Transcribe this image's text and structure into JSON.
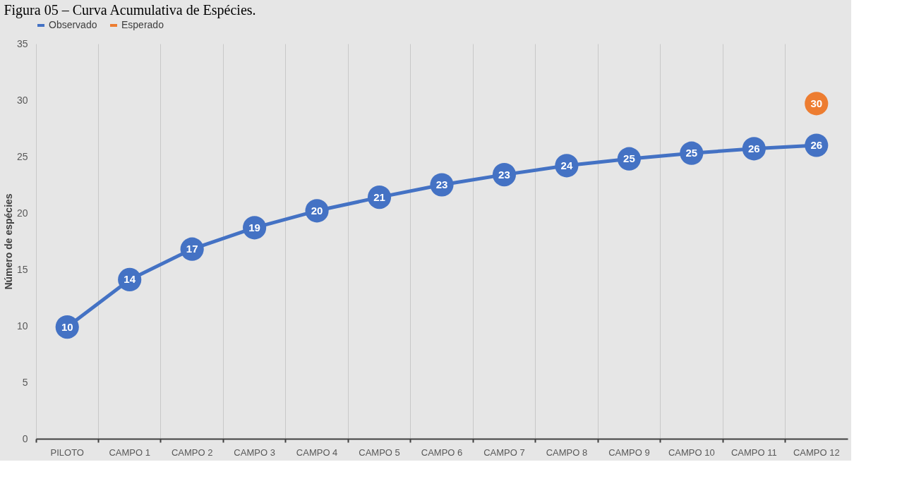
{
  "chart_data": {
    "type": "line",
    "title": "Figura 05 – Curva Acumulativa de Espécies.",
    "ylabel": "Número de espécies",
    "categories": [
      "PILOTO",
      "CAMPO 1",
      "CAMPO 2",
      "CAMPO 3",
      "CAMPO 4",
      "CAMPO 5",
      "CAMPO 6",
      "CAMPO 7",
      "CAMPO 8",
      "CAMPO 9",
      "CAMPO 10",
      "CAMPO 11",
      "CAMPO 12"
    ],
    "series": [
      {
        "name": "Observado",
        "color": "#4472c4",
        "values": [
          9.9,
          14.1,
          16.8,
          18.7,
          20.2,
          21.4,
          22.5,
          23.4,
          24.2,
          24.8,
          25.3,
          25.7,
          26.0
        ],
        "value_labels": [
          "10",
          "14",
          "17",
          "19",
          "20",
          "21",
          "23",
          "23",
          "24",
          "25",
          "25",
          "26",
          "26"
        ]
      },
      {
        "name": "Esperado",
        "color": "#ed7d31",
        "values": [
          null,
          null,
          null,
          null,
          null,
          null,
          null,
          null,
          null,
          null,
          null,
          null,
          29.7
        ],
        "value_labels": [
          null,
          null,
          null,
          null,
          null,
          null,
          null,
          null,
          null,
          null,
          null,
          null,
          "30"
        ]
      }
    ],
    "ylim": [
      0,
      35
    ],
    "yticks": [
      0,
      5,
      10,
      15,
      20,
      25,
      30,
      35
    ],
    "grid": "x",
    "legend": "top",
    "marker": "circle",
    "line_style": "solid"
  }
}
